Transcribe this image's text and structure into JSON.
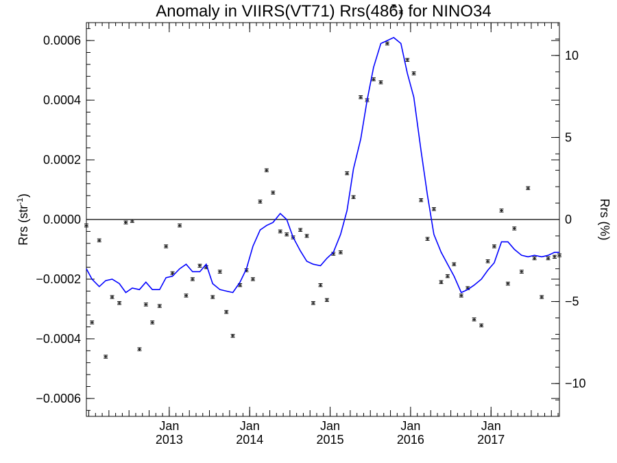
{
  "chart_data": {
    "type": "line",
    "title": "Anomaly in VIIRS(VT71) Rrs(486) for NINO34",
    "ylabel_left_base": "Rrs (str",
    "ylabel_left_sup": "-1",
    "ylabel_left_tail": ")",
    "ylabel_right": "Rrs (%)",
    "xlabel": "",
    "grid": false,
    "x_range_years": [
      2011.97,
      2017.85
    ],
    "y_left_range": [
      -0.00066,
      0.00066
    ],
    "y_right_range": [
      -12,
      12
    ],
    "x_ticks": [
      {
        "month": "Jan",
        "year": "2013",
        "x": 2013.0
      },
      {
        "month": "Jan",
        "year": "2014",
        "x": 2014.0
      },
      {
        "month": "Jan",
        "year": "2015",
        "x": 2015.0
      },
      {
        "month": "Jan",
        "year": "2016",
        "x": 2016.0
      },
      {
        "month": "Jan",
        "year": "2017",
        "x": 2017.0
      }
    ],
    "y_left_ticks": [
      {
        "label": "0.0006",
        "value": 0.0006
      },
      {
        "label": "0.0004",
        "value": 0.0004
      },
      {
        "label": "0.0002",
        "value": 0.0002
      },
      {
        "label": "0.0000",
        "value": 0.0
      },
      {
        "label": "−0.0002",
        "value": -0.0002
      },
      {
        "label": "−0.0004",
        "value": -0.0004
      },
      {
        "label": "−0.0006",
        "value": -0.0006
      }
    ],
    "y_right_ticks": [
      {
        "label": "10",
        "value": 10
      },
      {
        "label": "5",
        "value": 5
      },
      {
        "label": "0",
        "value": 0
      },
      {
        "label": "−5",
        "value": -5
      },
      {
        "label": "−10",
        "value": -10
      }
    ],
    "zero_line": true,
    "series": [
      {
        "kind": "points_with_error",
        "color": "#000000",
        "axis": "left",
        "error": 5e-06,
        "points": [
          [
            2011.97,
            -2e-05
          ],
          [
            2012.04,
            -0.000345
          ],
          [
            2012.13,
            -7e-05
          ],
          [
            2012.21,
            -0.00046
          ],
          [
            2012.29,
            -0.00026
          ],
          [
            2012.38,
            -0.00028
          ],
          [
            2012.46,
            -1e-05
          ],
          [
            2012.54,
            -5e-06
          ],
          [
            2012.63,
            -0.000435
          ],
          [
            2012.71,
            -0.000285
          ],
          [
            2012.79,
            -0.000345
          ],
          [
            2012.88,
            -0.00029
          ],
          [
            2012.96,
            -9e-05
          ],
          [
            2013.04,
            -0.00018
          ],
          [
            2013.13,
            -2e-05
          ],
          [
            2013.21,
            -0.000255
          ],
          [
            2013.29,
            -0.0002
          ],
          [
            2013.38,
            -0.000155
          ],
          [
            2013.46,
            -0.00016
          ],
          [
            2013.54,
            -0.00026
          ],
          [
            2013.63,
            -0.000175
          ],
          [
            2013.71,
            -0.00031
          ],
          [
            2013.79,
            -0.00039
          ],
          [
            2013.88,
            -0.00022
          ],
          [
            2013.96,
            -0.00017
          ],
          [
            2014.04,
            -0.0002
          ],
          [
            2014.13,
            6e-05
          ],
          [
            2014.21,
            0.000165
          ],
          [
            2014.29,
            9e-05
          ],
          [
            2014.38,
            -4e-05
          ],
          [
            2014.46,
            -5e-05
          ],
          [
            2014.54,
            -6e-05
          ],
          [
            2014.63,
            -3.5e-05
          ],
          [
            2014.71,
            -5.5e-05
          ],
          [
            2014.79,
            -0.00028
          ],
          [
            2014.88,
            -0.00022
          ],
          [
            2014.96,
            -0.00027
          ],
          [
            2015.04,
            -0.000115
          ],
          [
            2015.13,
            -0.00011
          ],
          [
            2015.21,
            0.000155
          ],
          [
            2015.29,
            7.5e-05
          ],
          [
            2015.38,
            0.00041
          ],
          [
            2015.46,
            0.0004
          ],
          [
            2015.54,
            0.00047
          ],
          [
            2015.63,
            0.00046
          ],
          [
            2015.71,
            0.00059
          ],
          [
            2015.79,
            0.000715
          ],
          [
            2015.88,
            0.000695
          ],
          [
            2015.96,
            0.000535
          ],
          [
            2016.04,
            0.00049
          ],
          [
            2016.13,
            6.5e-05
          ],
          [
            2016.21,
            -6.5e-05
          ],
          [
            2016.29,
            3.5e-05
          ],
          [
            2016.38,
            -0.00021
          ],
          [
            2016.46,
            -0.00019
          ],
          [
            2016.54,
            -0.00015
          ],
          [
            2016.63,
            -0.000255
          ],
          [
            2016.71,
            -0.00023
          ],
          [
            2016.79,
            -0.000335
          ],
          [
            2016.88,
            -0.000355
          ],
          [
            2016.96,
            -0.00014
          ],
          [
            2017.04,
            -9e-05
          ],
          [
            2017.13,
            3e-05
          ],
          [
            2017.21,
            -0.000215
          ],
          [
            2017.29,
            -3e-05
          ],
          [
            2017.38,
            -0.000175
          ],
          [
            2017.46,
            0.000105
          ],
          [
            2017.54,
            -0.00013
          ],
          [
            2017.63,
            -0.00026
          ],
          [
            2017.71,
            -0.00013
          ],
          [
            2017.79,
            -0.000125
          ],
          [
            2017.85,
            -0.00012
          ]
        ]
      },
      {
        "kind": "line",
        "color": "#0000ff",
        "axis": "left",
        "points": [
          [
            2011.97,
            -0.000165
          ],
          [
            2012.04,
            -0.0002
          ],
          [
            2012.13,
            -0.000225
          ],
          [
            2012.21,
            -0.000205
          ],
          [
            2012.29,
            -0.0002
          ],
          [
            2012.38,
            -0.000215
          ],
          [
            2012.46,
            -0.000245
          ],
          [
            2012.54,
            -0.00023
          ],
          [
            2012.63,
            -0.000235
          ],
          [
            2012.71,
            -0.00021
          ],
          [
            2012.79,
            -0.000235
          ],
          [
            2012.88,
            -0.000235
          ],
          [
            2012.96,
            -0.000195
          ],
          [
            2013.04,
            -0.00019
          ],
          [
            2013.13,
            -0.000165
          ],
          [
            2013.21,
            -0.00015
          ],
          [
            2013.29,
            -0.000175
          ],
          [
            2013.38,
            -0.000175
          ],
          [
            2013.46,
            -0.00015
          ],
          [
            2013.54,
            -0.000215
          ],
          [
            2013.63,
            -0.000235
          ],
          [
            2013.71,
            -0.00024
          ],
          [
            2013.79,
            -0.000245
          ],
          [
            2013.88,
            -0.00021
          ],
          [
            2013.96,
            -0.000165
          ],
          [
            2014.04,
            -9e-05
          ],
          [
            2014.13,
            -3.5e-05
          ],
          [
            2014.21,
            -2e-05
          ],
          [
            2014.29,
            -1e-05
          ],
          [
            2014.38,
            2e-05
          ],
          [
            2014.46,
            0.0
          ],
          [
            2014.54,
            -6e-05
          ],
          [
            2014.63,
            -0.000105
          ],
          [
            2014.71,
            -0.00014
          ],
          [
            2014.79,
            -0.00015
          ],
          [
            2014.88,
            -0.000155
          ],
          [
            2014.96,
            -0.00013
          ],
          [
            2015.04,
            -0.00011
          ],
          [
            2015.13,
            -5e-05
          ],
          [
            2015.21,
            3e-05
          ],
          [
            2015.29,
            0.00017
          ],
          [
            2015.38,
            0.00027
          ],
          [
            2015.46,
            0.0004
          ],
          [
            2015.54,
            0.00051
          ],
          [
            2015.63,
            0.00059
          ],
          [
            2015.71,
            0.0006
          ],
          [
            2015.79,
            0.00061
          ],
          [
            2015.88,
            0.00059
          ],
          [
            2015.96,
            0.00049
          ],
          [
            2016.04,
            0.00041
          ],
          [
            2016.13,
            0.00023
          ],
          [
            2016.21,
            8e-05
          ],
          [
            2016.29,
            -5e-05
          ],
          [
            2016.38,
            -0.00011
          ],
          [
            2016.46,
            -0.00015
          ],
          [
            2016.54,
            -0.00019
          ],
          [
            2016.63,
            -0.000245
          ],
          [
            2016.71,
            -0.000235
          ],
          [
            2016.79,
            -0.00022
          ],
          [
            2016.88,
            -0.0002
          ],
          [
            2016.96,
            -0.00017
          ],
          [
            2017.04,
            -0.000145
          ],
          [
            2017.13,
            -7.5e-05
          ],
          [
            2017.21,
            -7.5e-05
          ],
          [
            2017.29,
            -0.0001
          ],
          [
            2017.38,
            -0.00012
          ],
          [
            2017.46,
            -0.000125
          ],
          [
            2017.54,
            -0.00012
          ],
          [
            2017.63,
            -0.000125
          ],
          [
            2017.71,
            -0.00012
          ],
          [
            2017.79,
            -0.00011
          ],
          [
            2017.85,
            -0.00011
          ]
        ]
      }
    ]
  }
}
